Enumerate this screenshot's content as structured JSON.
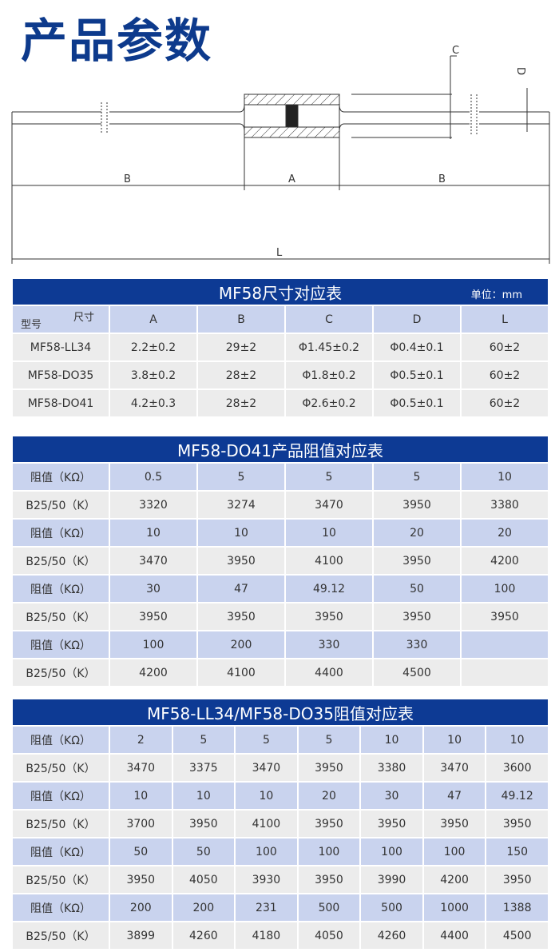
{
  "title": "产品参数",
  "diagram": {
    "labels": {
      "A": "A",
      "B": "B",
      "C": "C",
      "D": "D",
      "L": "L"
    }
  },
  "colors": {
    "header": "#0d3a94",
    "blue_row": "#c9d3ee",
    "gray_row": "#ececec",
    "title": "#0d3a8c"
  },
  "size_table": {
    "title": "MF58尺寸对应表",
    "unit": "单位：mm",
    "corner_top": "尺寸",
    "corner_bottom": "型号",
    "columns": [
      "A",
      "B",
      "C",
      "D",
      "L"
    ],
    "rows": [
      {
        "model": "MF58-LL34",
        "values": [
          "2.2±0.2",
          "29±2",
          "Φ1.45±0.2",
          "Φ0.4±0.1",
          "60±2"
        ]
      },
      {
        "model": "MF58-DO35",
        "values": [
          "3.8±0.2",
          "28±2",
          "Φ1.8±0.2",
          "Φ0.5±0.1",
          "60±2"
        ]
      },
      {
        "model": "MF58-DO41",
        "values": [
          "4.2±0.3",
          "28±2",
          "Φ2.6±0.2",
          "Φ0.5±0.1",
          "60±2"
        ]
      }
    ]
  },
  "do41_table": {
    "title": "MF58-DO41产品阻值对应表",
    "rows": [
      {
        "label": "阻值（KΩ）",
        "values": [
          "0.5",
          "5",
          "5",
          "5",
          "10"
        ]
      },
      {
        "label": "B25/50（K）",
        "values": [
          "3320",
          "3274",
          "3470",
          "3950",
          "3380"
        ]
      },
      {
        "label": "阻值（KΩ）",
        "values": [
          "10",
          "10",
          "10",
          "20",
          "20"
        ]
      },
      {
        "label": "B25/50（K）",
        "values": [
          "3470",
          "3950",
          "4100",
          "3950",
          "4200"
        ]
      },
      {
        "label": "阻值（KΩ）",
        "values": [
          "30",
          "47",
          "49.12",
          "50",
          "100"
        ]
      },
      {
        "label": "B25/50（K）",
        "values": [
          "3950",
          "3950",
          "3950",
          "3950",
          "3950"
        ]
      },
      {
        "label": "阻值（KΩ）",
        "values": [
          "100",
          "200",
          "330",
          "330",
          ""
        ]
      },
      {
        "label": "B25/50（K）",
        "values": [
          "4200",
          "4100",
          "4400",
          "4500",
          ""
        ]
      }
    ]
  },
  "ll34_table": {
    "title": "MF58-LL34/MF58-DO35阻值对应表",
    "rows": [
      {
        "label": "阻值（KΩ）",
        "values": [
          "2",
          "5",
          "5",
          "5",
          "10",
          "10",
          "10"
        ]
      },
      {
        "label": "B25/50（K）",
        "values": [
          "3470",
          "3375",
          "3470",
          "3950",
          "3380",
          "3470",
          "3600"
        ]
      },
      {
        "label": "阻值（KΩ）",
        "values": [
          "10",
          "10",
          "10",
          "20",
          "30",
          "47",
          "49.12"
        ]
      },
      {
        "label": "B25/50（K）",
        "values": [
          "3700",
          "3950",
          "4100",
          "3950",
          "3950",
          "3950",
          "3950"
        ]
      },
      {
        "label": "阻值（KΩ）",
        "values": [
          "50",
          "50",
          "100",
          "100",
          "100",
          "100",
          "150"
        ]
      },
      {
        "label": "B25/50（K）",
        "values": [
          "3950",
          "4050",
          "3930",
          "3950",
          "3990",
          "4200",
          "3950"
        ]
      },
      {
        "label": "阻值（KΩ）",
        "values": [
          "200",
          "200",
          "231",
          "500",
          "500",
          "1000",
          "1388"
        ]
      },
      {
        "label": "B25/50（K）",
        "values": [
          "3899",
          "4260",
          "4180",
          "4050",
          "4260",
          "4400",
          "4500"
        ]
      }
    ]
  }
}
